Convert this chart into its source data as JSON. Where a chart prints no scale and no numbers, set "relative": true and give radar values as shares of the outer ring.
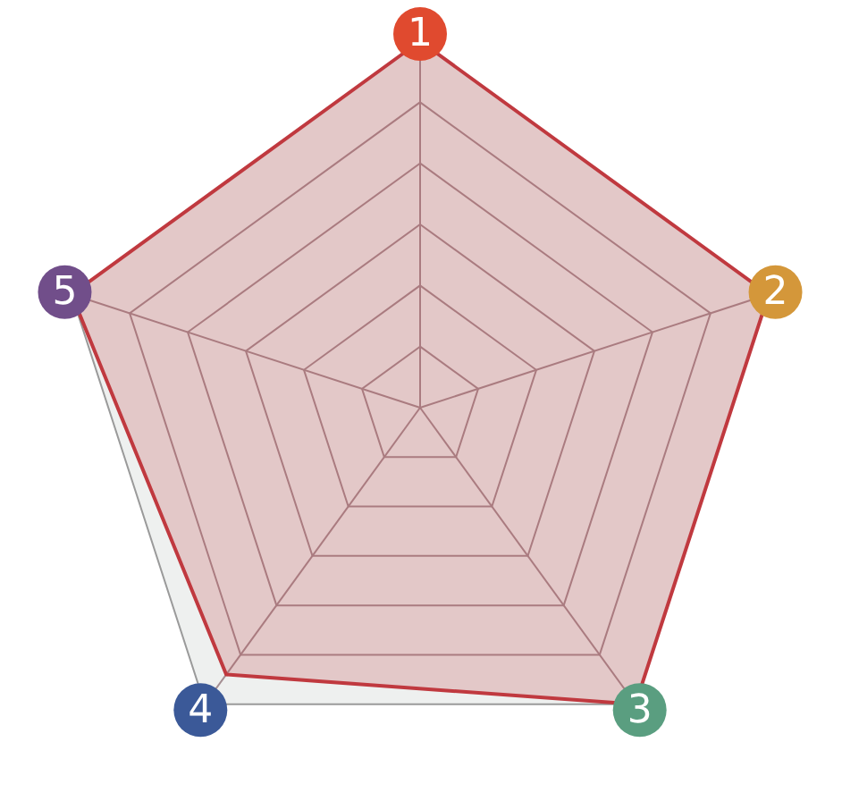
{
  "chart_data": {
    "type": "radar",
    "relative": true,
    "categories": [
      "1",
      "2",
      "3",
      "4",
      "5"
    ],
    "colors": [
      "#e04a2f",
      "#d4973a",
      "#5a9e80",
      "#3b5998",
      "#714e8a"
    ],
    "series": [
      {
        "color": "#c0393f",
        "values": [
          1,
          1,
          1,
          0.9,
          1
        ]
      }
    ],
    "legend": false
  }
}
